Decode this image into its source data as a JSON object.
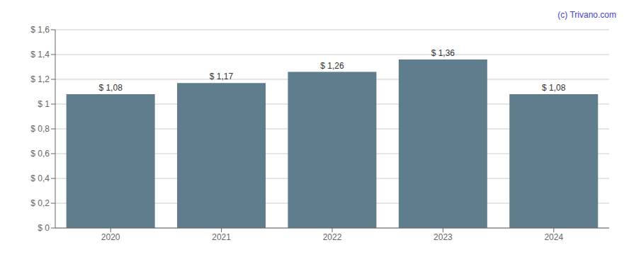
{
  "chart_data": {
    "type": "bar",
    "categories": [
      "2020",
      "2021",
      "2022",
      "2023",
      "2024"
    ],
    "values": [
      1.08,
      1.17,
      1.26,
      1.36,
      1.08
    ],
    "value_labels": [
      "$ 1,08",
      "$ 1,17",
      "$ 1,26",
      "$ 1,36",
      "$ 1,08"
    ],
    "data_labels": true,
    "color": "#5f7d8c",
    "ylim": [
      0,
      1.6
    ],
    "yticks": [
      {
        "value": 0,
        "label": "$ 0"
      },
      {
        "value": 0.2,
        "label": "$ 0,2"
      },
      {
        "value": 0.4,
        "label": "$ 0,4"
      },
      {
        "value": 0.6,
        "label": "$ 0,6"
      },
      {
        "value": 0.8,
        "label": "$ 0,8"
      },
      {
        "value": 1.0,
        "label": "$ 1"
      },
      {
        "value": 1.2,
        "label": "$ 1,2"
      },
      {
        "value": 1.4,
        "label": "$ 1,4"
      },
      {
        "value": 1.6,
        "label": "$ 1,6"
      }
    ],
    "grid": true,
    "annotations": [
      {
        "text": "(c) Trivano.com",
        "color": "#4444cc"
      }
    ]
  }
}
